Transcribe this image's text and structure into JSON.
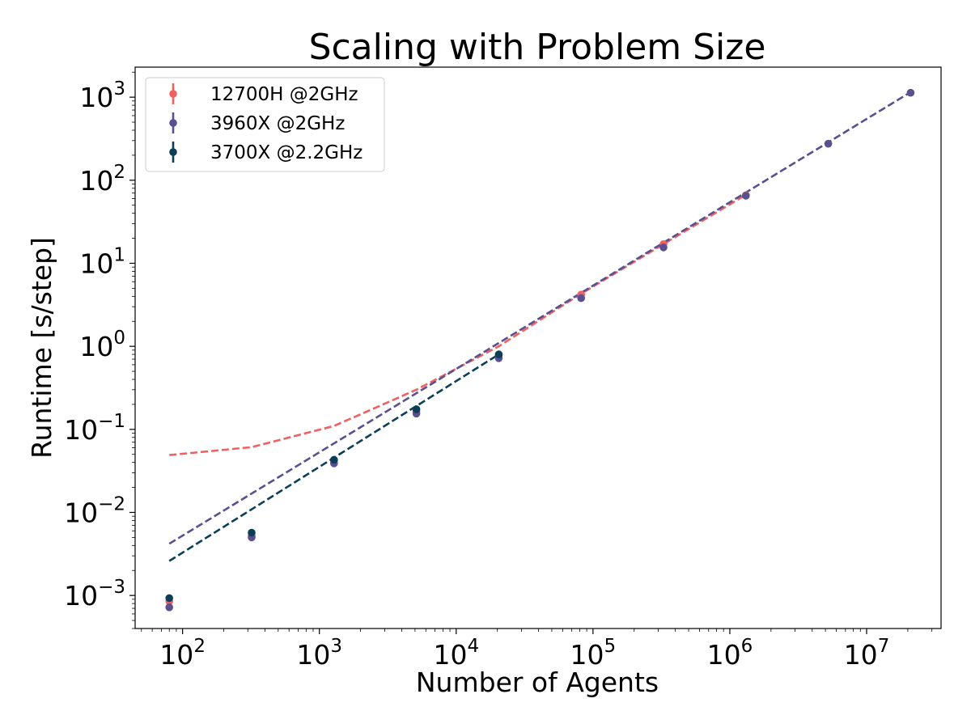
{
  "chart_data": {
    "type": "scatter",
    "title": "Scaling with Problem Size",
    "xlabel": "Number of Agents",
    "ylabel": "Runtime [s/step]",
    "xscale": "log",
    "yscale": "log",
    "xlim": [
      45,
      35000000
    ],
    "ylim": [
      0.0004,
      2300
    ],
    "x_ticks": [
      {
        "value": 100,
        "base": "10",
        "exp": "2"
      },
      {
        "value": 1000,
        "base": "10",
        "exp": "3"
      },
      {
        "value": 10000,
        "base": "10",
        "exp": "4"
      },
      {
        "value": 100000,
        "base": "10",
        "exp": "5"
      },
      {
        "value": 1000000,
        "base": "10",
        "exp": "6"
      },
      {
        "value": 10000000,
        "base": "10",
        "exp": "7"
      }
    ],
    "y_ticks": [
      {
        "value": 0.001,
        "base": "10",
        "exp": "−3"
      },
      {
        "value": 0.01,
        "base": "10",
        "exp": "−2"
      },
      {
        "value": 0.1,
        "base": "10",
        "exp": "−1"
      },
      {
        "value": 1,
        "base": "10",
        "exp": "0"
      },
      {
        "value": 10,
        "base": "10",
        "exp": "1"
      },
      {
        "value": 100,
        "base": "10",
        "exp": "2"
      },
      {
        "value": 1000,
        "base": "10",
        "exp": "3"
      }
    ],
    "grid": false,
    "legend_position": "top-left",
    "series": [
      {
        "name": "12700H @2GHz",
        "color": "#f06060",
        "points": [
          {
            "x": 80,
            "y": 0.00085
          },
          {
            "x": 320,
            "y": 0.0052
          },
          {
            "x": 1280,
            "y": 0.04
          },
          {
            "x": 5120,
            "y": 0.165
          },
          {
            "x": 20480,
            "y": 0.78
          },
          {
            "x": 81920,
            "y": 4.2
          },
          {
            "x": 327680,
            "y": 17.0
          },
          {
            "x": 1310720,
            "y": 66.0
          }
        ],
        "fit_line": [
          {
            "x": 80,
            "y": 0.049
          },
          {
            "x": 320,
            "y": 0.061
          },
          {
            "x": 1280,
            "y": 0.11
          },
          {
            "x": 5120,
            "y": 0.3
          },
          {
            "x": 20480,
            "y": 1.0
          },
          {
            "x": 81920,
            "y": 4.3
          },
          {
            "x": 327680,
            "y": 17.0
          },
          {
            "x": 1310720,
            "y": 67.0
          }
        ]
      },
      {
        "name": "3960X @2GHz",
        "color": "#5a5090",
        "points": [
          {
            "x": 80,
            "y": 0.00072
          },
          {
            "x": 320,
            "y": 0.005
          },
          {
            "x": 1280,
            "y": 0.039
          },
          {
            "x": 5120,
            "y": 0.155
          },
          {
            "x": 20480,
            "y": 0.72
          },
          {
            "x": 81920,
            "y": 3.8
          },
          {
            "x": 327680,
            "y": 15.5
          },
          {
            "x": 1310720,
            "y": 65.0
          },
          {
            "x": 5242880,
            "y": 275.0
          },
          {
            "x": 20971520,
            "y": 1130.0
          }
        ],
        "fit_line": [
          {
            "x": 80,
            "y": 0.0042
          },
          {
            "x": 20971520,
            "y": 1150.0
          }
        ]
      },
      {
        "name": "3700X @2.2GHz",
        "color": "#0c3e58",
        "points": [
          {
            "x": 80,
            "y": 0.00093
          },
          {
            "x": 320,
            "y": 0.0057
          },
          {
            "x": 1280,
            "y": 0.043
          },
          {
            "x": 5120,
            "y": 0.175
          },
          {
            "x": 20480,
            "y": 0.8
          }
        ],
        "fit_line": [
          {
            "x": 80,
            "y": 0.0026
          },
          {
            "x": 20480,
            "y": 0.8
          }
        ]
      }
    ]
  }
}
